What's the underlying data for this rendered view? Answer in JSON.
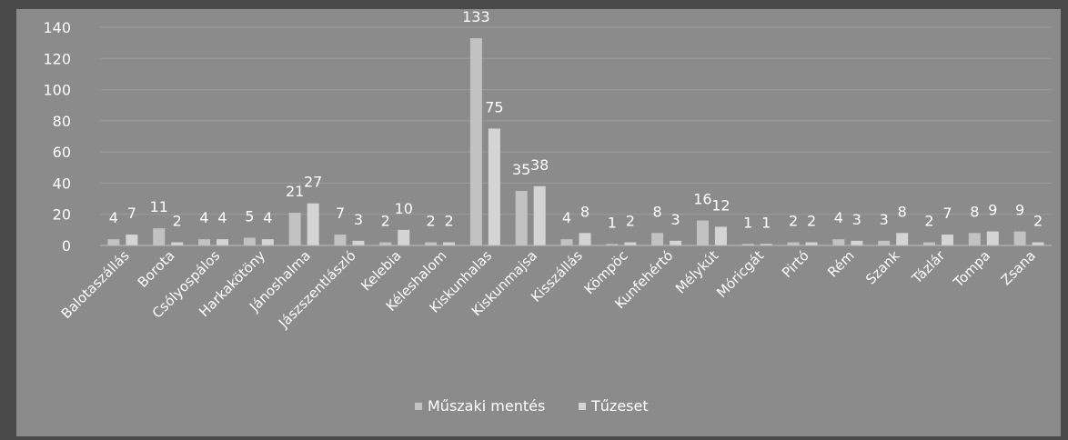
{
  "chart_data": {
    "type": "bar",
    "categories": [
      "Balotaszállás",
      "Borota",
      "Csólyospálos",
      "Harkakötöny",
      "Jánoshalma",
      "Jászszentlászló",
      "Kelebia",
      "Kéleshalom",
      "Kiskunhalas",
      "Kiskunmajsa",
      "Kisszállás",
      "Kömpöc",
      "Kunfehértó",
      "Mélykút",
      "Móricgát",
      "Pirtó",
      "Rém",
      "Szank",
      "Tázlár",
      "Tompa",
      "Zsana"
    ],
    "series": [
      {
        "name": "Műszaki mentés",
        "color": "#c2c2c2",
        "values": [
          4,
          11,
          4,
          5,
          21,
          7,
          2,
          2,
          133,
          35,
          4,
          1,
          8,
          16,
          1,
          2,
          4,
          3,
          2,
          8,
          9
        ]
      },
      {
        "name": "Tűzeset",
        "color": "#d4d4d4",
        "values": [
          7,
          2,
          4,
          4,
          27,
          3,
          10,
          2,
          75,
          38,
          8,
          2,
          3,
          12,
          1,
          2,
          3,
          8,
          7,
          9,
          2
        ]
      }
    ],
    "data_labels": [
      [
        "4",
        "11",
        "4",
        "5",
        "21",
        "7",
        "2",
        "2",
        "133",
        "35",
        "4",
        "1",
        "8",
        "16",
        "1",
        "2",
        "4",
        "3",
        "2",
        "8",
        "9"
      ],
      [
        "7",
        "2",
        "4",
        "4",
        "27",
        "3",
        "10",
        "2",
        "75",
        "38",
        "8",
        "2",
        "3",
        "12",
        "1",
        "2",
        "3",
        "8",
        "7",
        "9",
        "2"
      ]
    ],
    "yticks": [
      "0",
      "20",
      "40",
      "60",
      "80",
      "100",
      "120",
      "140"
    ],
    "ylim": [
      0,
      140
    ],
    "grid": true,
    "legend_placement": "bottom-center",
    "title": "",
    "xlabel": "",
    "ylabel": ""
  }
}
